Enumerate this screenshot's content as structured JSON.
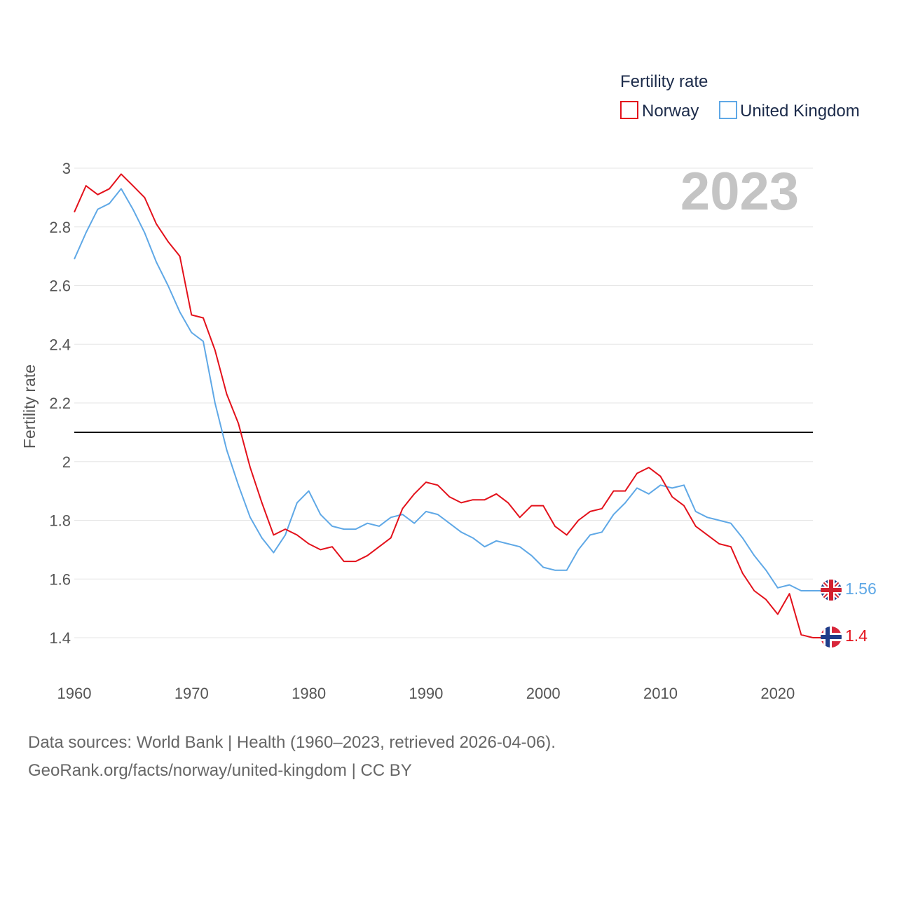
{
  "chart_data": {
    "type": "line",
    "ylabel": "Fertility rate",
    "ylim": [
      1.3,
      3.0
    ],
    "yticks": [
      1.4,
      1.6,
      1.8,
      2.0,
      2.2,
      2.4,
      2.6,
      2.8,
      3.0
    ],
    "ytick_labels": [
      "1.4",
      "1.6",
      "1.8",
      "2",
      "2.2",
      "2.4",
      "2.6",
      "2.8",
      "3"
    ],
    "xlim": [
      1960,
      2023
    ],
    "xticks": [
      1960,
      1970,
      1980,
      1990,
      2000,
      2010,
      2020
    ],
    "xtick_labels": [
      "1960",
      "1970",
      "1980",
      "1990",
      "2000",
      "2010",
      "2020"
    ],
    "reference_line": 2.1,
    "year_label": "2023",
    "legend_title": "Fertility rate",
    "legend_position": "top-right",
    "x": [
      1960,
      1961,
      1962,
      1963,
      1964,
      1965,
      1966,
      1967,
      1968,
      1969,
      1970,
      1971,
      1972,
      1973,
      1974,
      1975,
      1976,
      1977,
      1978,
      1979,
      1980,
      1981,
      1982,
      1983,
      1984,
      1985,
      1986,
      1987,
      1988,
      1989,
      1990,
      1991,
      1992,
      1993,
      1994,
      1995,
      1996,
      1997,
      1998,
      1999,
      2000,
      2001,
      2002,
      2003,
      2004,
      2005,
      2006,
      2007,
      2008,
      2009,
      2010,
      2011,
      2012,
      2013,
      2014,
      2015,
      2016,
      2017,
      2018,
      2019,
      2020,
      2021,
      2022,
      2023
    ],
    "series": [
      {
        "name": "Norway",
        "color": "#e3111b",
        "end_label": "1.4",
        "values": [
          2.85,
          2.94,
          2.91,
          2.93,
          2.98,
          2.94,
          2.9,
          2.81,
          2.75,
          2.7,
          2.5,
          2.49,
          2.38,
          2.23,
          2.13,
          1.98,
          1.86,
          1.75,
          1.77,
          1.75,
          1.72,
          1.7,
          1.71,
          1.66,
          1.66,
          1.68,
          1.71,
          1.74,
          1.84,
          1.89,
          1.93,
          1.92,
          1.88,
          1.86,
          1.87,
          1.87,
          1.89,
          1.86,
          1.81,
          1.85,
          1.85,
          1.78,
          1.75,
          1.8,
          1.83,
          1.84,
          1.9,
          1.9,
          1.96,
          1.98,
          1.95,
          1.88,
          1.85,
          1.78,
          1.75,
          1.72,
          1.71,
          1.62,
          1.56,
          1.53,
          1.48,
          1.55,
          1.41,
          1.4
        ]
      },
      {
        "name": "United Kingdom",
        "color": "#5fa8e6",
        "end_label": "1.56",
        "values": [
          2.69,
          2.78,
          2.86,
          2.88,
          2.93,
          2.86,
          2.78,
          2.68,
          2.6,
          2.51,
          2.44,
          2.41,
          2.2,
          2.04,
          1.92,
          1.81,
          1.74,
          1.69,
          1.75,
          1.86,
          1.9,
          1.82,
          1.78,
          1.77,
          1.77,
          1.79,
          1.78,
          1.81,
          1.82,
          1.79,
          1.83,
          1.82,
          1.79,
          1.76,
          1.74,
          1.71,
          1.73,
          1.72,
          1.71,
          1.68,
          1.64,
          1.63,
          1.63,
          1.7,
          1.75,
          1.76,
          1.82,
          1.86,
          1.91,
          1.89,
          1.92,
          1.91,
          1.92,
          1.83,
          1.81,
          1.8,
          1.79,
          1.74,
          1.68,
          1.63,
          1.57,
          1.58,
          1.56,
          1.56
        ]
      }
    ]
  },
  "footer": {
    "line1": "Data sources: World Bank | Health (1960–2023, retrieved 2026-04-06).",
    "line2": "GeoRank.org/facts/norway/united-kingdom | CC BY"
  }
}
